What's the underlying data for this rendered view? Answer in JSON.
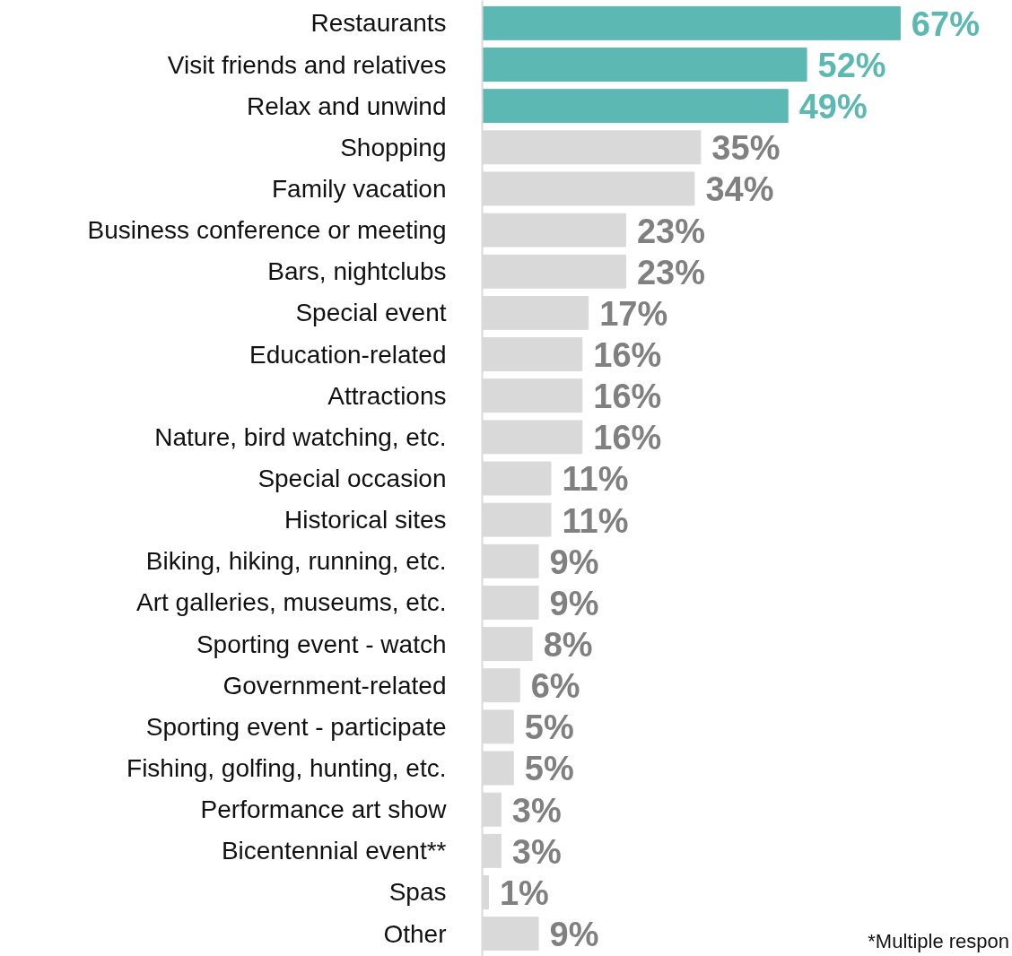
{
  "chart_data": {
    "type": "bar",
    "orientation": "horizontal",
    "grid": false,
    "value_labels": [
      "67%",
      "52%",
      "49%",
      "35%",
      "34%",
      "23%",
      "23%",
      "17%",
      "16%",
      "16%",
      "16%",
      "11%",
      "11%",
      "9%",
      "9%",
      "8%",
      "6%",
      "5%",
      "5%",
      "3%",
      "3%",
      "1%",
      "9%"
    ],
    "categories": [
      "Restaurants",
      "Visit friends and relatives",
      "Relax and unwind",
      "Shopping",
      "Family vacation",
      "Business conference or meeting",
      "Bars, nightclubs",
      "Special event",
      "Education-related",
      "Attractions",
      "Nature, bird watching, etc.",
      "Special occasion",
      "Historical sites",
      "Biking, hiking, running, etc.",
      "Art galleries, museums, etc.",
      "Sporting event - watch",
      "Government-related",
      "Sporting event - participate",
      "Fishing, golfing, hunting, etc.",
      "Performance art show",
      "Bicentennial event**",
      "Spas",
      "Other"
    ],
    "values": [
      67,
      52,
      49,
      35,
      34,
      23,
      23,
      17,
      16,
      16,
      16,
      11,
      11,
      9,
      9,
      8,
      6,
      5,
      5,
      3,
      3,
      1,
      9
    ],
    "colors": [
      "#5cb8b2",
      "#5cb8b2",
      "#5cb8b2",
      "#d9d9d9",
      "#d9d9d9",
      "#d9d9d9",
      "#d9d9d9",
      "#d9d9d9",
      "#d9d9d9",
      "#d9d9d9",
      "#d9d9d9",
      "#d9d9d9",
      "#d9d9d9",
      "#d9d9d9",
      "#d9d9d9",
      "#d9d9d9",
      "#d9d9d9",
      "#d9d9d9",
      "#d9d9d9",
      "#d9d9d9",
      "#d9d9d9",
      "#d9d9d9",
      "#d9d9d9"
    ],
    "annotations": [
      "*Multiple respon"
    ]
  }
}
